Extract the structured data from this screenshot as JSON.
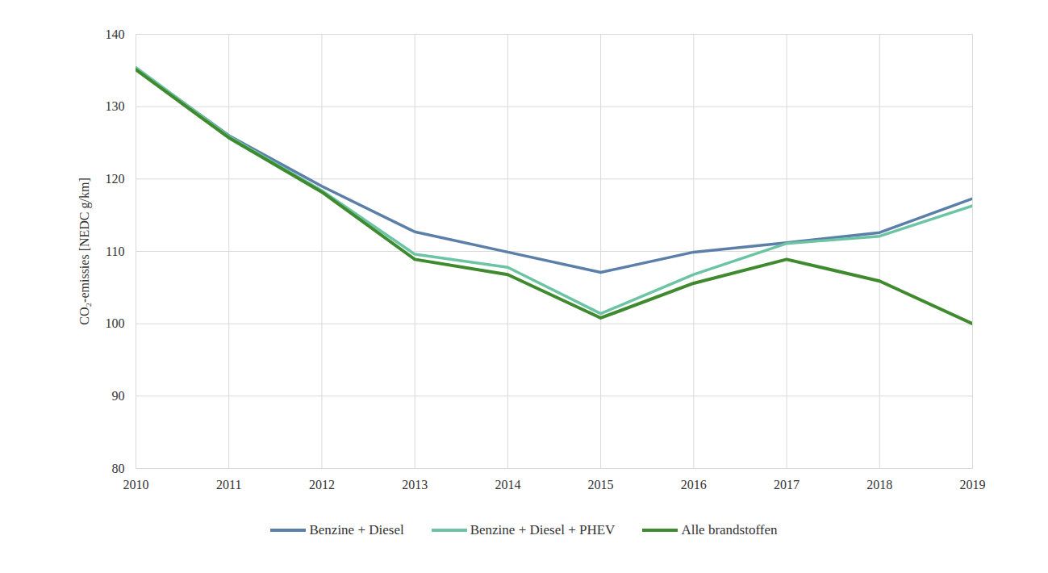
{
  "chart_data": {
    "type": "line",
    "y_label": "CO₂-emissies [NEDC g/km]",
    "x": [
      2010,
      2011,
      2012,
      2013,
      2014,
      2015,
      2016,
      2017,
      2018,
      2019
    ],
    "series": [
      {
        "name": "Benzine + Diesel",
        "color": "#5b7fa8",
        "values": [
          135.3,
          126.0,
          119.0,
          112.7,
          109.9,
          107.1,
          109.9,
          111.2,
          112.6,
          117.3
        ]
      },
      {
        "name": "Benzine + Diesel + PHEV",
        "color": "#6cc4a4",
        "values": [
          135.4,
          125.9,
          118.4,
          109.6,
          107.8,
          101.4,
          106.8,
          111.1,
          112.1,
          116.3
        ]
      },
      {
        "name": "Alle brandstoffen",
        "color": "#3f8a2f",
        "values": [
          135.1,
          125.7,
          118.2,
          108.9,
          106.8,
          100.8,
          105.6,
          108.9,
          105.9,
          100.0
        ]
      }
    ],
    "xlim": [
      2010,
      2019
    ],
    "xticks": [
      2010,
      2011,
      2012,
      2013,
      2014,
      2015,
      2016,
      2017,
      2018,
      2019
    ],
    "ylim": [
      80,
      140
    ],
    "yticks": [
      80,
      90,
      100,
      110,
      120,
      130,
      140
    ],
    "grid": true,
    "legend": "bottom"
  }
}
